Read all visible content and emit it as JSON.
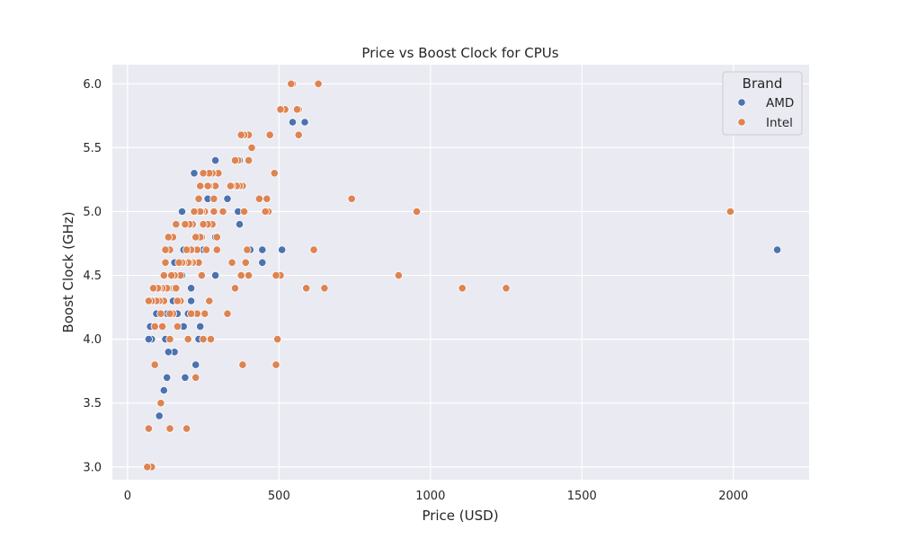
{
  "chart_data": {
    "type": "scatter",
    "title": "Price vs Boost Clock for CPUs",
    "xlabel": "Price (USD)",
    "ylabel": "Boost Clock (GHz)",
    "xlim": [
      -50,
      2250
    ],
    "ylim": [
      2.9,
      6.15
    ],
    "xticks": [
      0,
      500,
      1000,
      1500,
      2000
    ],
    "yticks": [
      3.0,
      3.5,
      4.0,
      4.5,
      5.0,
      5.5,
      6.0
    ],
    "xtick_labels": [
      "0",
      "500",
      "1000",
      "1500",
      "2000"
    ],
    "ytick_labels": [
      "3.0",
      "3.5",
      "4.0",
      "4.5",
      "5.0",
      "5.5",
      "6.0"
    ],
    "grid": true,
    "legend": {
      "title": "Brand",
      "position": "top-right"
    },
    "colors": {
      "background": "#eaeaf2",
      "grid": "#ffffff",
      "AMD": "#4c72b0",
      "Intel": "#dd8452"
    },
    "series": [
      {
        "name": "AMD",
        "color": "#4c72b0",
        "points": [
          [
            2145,
            4.7
          ],
          [
            585,
            5.7
          ],
          [
            545,
            5.7
          ],
          [
            510,
            4.7
          ],
          [
            445,
            4.6
          ],
          [
            445,
            4.7
          ],
          [
            405,
            4.7
          ],
          [
            385,
            5.6
          ],
          [
            370,
            5.4
          ],
          [
            365,
            5.0
          ],
          [
            370,
            4.9
          ],
          [
            330,
            5.1
          ],
          [
            290,
            5.4
          ],
          [
            290,
            4.8
          ],
          [
            290,
            4.5
          ],
          [
            265,
            5.1
          ],
          [
            250,
            4.7
          ],
          [
            230,
            5.0
          ],
          [
            225,
            4.7
          ],
          [
            220,
            5.3
          ],
          [
            220,
            4.2
          ],
          [
            240,
            4.1
          ],
          [
            235,
            4.0
          ],
          [
            225,
            3.8
          ],
          [
            210,
            4.4
          ],
          [
            210,
            4.3
          ],
          [
            200,
            4.2
          ],
          [
            180,
            5.0
          ],
          [
            185,
            4.7
          ],
          [
            180,
            4.5
          ],
          [
            185,
            4.1
          ],
          [
            190,
            3.7
          ],
          [
            165,
            4.3
          ],
          [
            165,
            4.2
          ],
          [
            155,
            4.6
          ],
          [
            150,
            4.4
          ],
          [
            150,
            4.3
          ],
          [
            155,
            3.9
          ],
          [
            140,
            4.4
          ],
          [
            135,
            3.9
          ],
          [
            130,
            4.2
          ],
          [
            125,
            4.0
          ],
          [
            130,
            3.7
          ],
          [
            120,
            3.6
          ],
          [
            110,
            4.3
          ],
          [
            105,
            3.4
          ],
          [
            100,
            4.2
          ],
          [
            95,
            4.2
          ],
          [
            90,
            4.3
          ],
          [
            85,
            4.1
          ],
          [
            80,
            4.0
          ],
          [
            75,
            4.1
          ],
          [
            70,
            4.0
          ]
        ]
      },
      {
        "name": "Intel",
        "color": "#dd8452",
        "points": [
          [
            1990,
            5.0
          ],
          [
            1250,
            4.4
          ],
          [
            1105,
            4.4
          ],
          [
            955,
            5.0
          ],
          [
            895,
            4.5
          ],
          [
            740,
            5.1
          ],
          [
            650,
            4.4
          ],
          [
            630,
            6.0
          ],
          [
            615,
            4.7
          ],
          [
            590,
            4.4
          ],
          [
            565,
            5.8
          ],
          [
            560,
            5.8
          ],
          [
            565,
            5.6
          ],
          [
            545,
            6.0
          ],
          [
            540,
            6.0
          ],
          [
            520,
            5.8
          ],
          [
            505,
            5.8
          ],
          [
            505,
            4.5
          ],
          [
            495,
            4.0
          ],
          [
            490,
            4.5
          ],
          [
            490,
            3.8
          ],
          [
            485,
            5.3
          ],
          [
            470,
            5.6
          ],
          [
            465,
            5.0
          ],
          [
            460,
            5.1
          ],
          [
            455,
            5.0
          ],
          [
            435,
            5.1
          ],
          [
            410,
            5.5
          ],
          [
            400,
            5.6
          ],
          [
            400,
            5.4
          ],
          [
            395,
            4.7
          ],
          [
            400,
            4.5
          ],
          [
            390,
            4.6
          ],
          [
            385,
            5.0
          ],
          [
            385,
            5.6
          ],
          [
            380,
            5.2
          ],
          [
            375,
            5.6
          ],
          [
            375,
            4.5
          ],
          [
            380,
            3.8
          ],
          [
            370,
            5.2
          ],
          [
            365,
            5.4
          ],
          [
            360,
            5.2
          ],
          [
            355,
            4.4
          ],
          [
            355,
            5.4
          ],
          [
            345,
            5.2
          ],
          [
            345,
            4.6
          ],
          [
            340,
            5.2
          ],
          [
            330,
            4.2
          ],
          [
            315,
            5.0
          ],
          [
            300,
            5.3
          ],
          [
            295,
            4.8
          ],
          [
            295,
            4.7
          ],
          [
            290,
            5.2
          ],
          [
            285,
            5.0
          ],
          [
            285,
            5.1
          ],
          [
            280,
            5.3
          ],
          [
            280,
            4.9
          ],
          [
            275,
            4.0
          ],
          [
            270,
            4.3
          ],
          [
            270,
            5.3
          ],
          [
            270,
            5.2
          ],
          [
            265,
            5.2
          ],
          [
            265,
            4.9
          ],
          [
            260,
            4.7
          ],
          [
            255,
            5.0
          ],
          [
            250,
            4.9
          ],
          [
            255,
            4.2
          ],
          [
            250,
            4.0
          ],
          [
            250,
            5.3
          ],
          [
            245,
            4.5
          ],
          [
            245,
            5.0
          ],
          [
            245,
            4.8
          ],
          [
            240,
            5.0
          ],
          [
            240,
            4.8
          ],
          [
            240,
            5.2
          ],
          [
            235,
            5.1
          ],
          [
            235,
            4.6
          ],
          [
            230,
            4.7
          ],
          [
            230,
            4.2
          ],
          [
            225,
            3.7
          ],
          [
            225,
            4.8
          ],
          [
            220,
            5.0
          ],
          [
            215,
            4.9
          ],
          [
            215,
            4.6
          ],
          [
            210,
            4.7
          ],
          [
            210,
            4.2
          ],
          [
            205,
            4.6
          ],
          [
            205,
            4.9
          ],
          [
            200,
            4.0
          ],
          [
            200,
            4.6
          ],
          [
            195,
            4.7
          ],
          [
            195,
            3.3
          ],
          [
            190,
            4.9
          ],
          [
            185,
            4.6
          ],
          [
            180,
            4.6
          ],
          [
            175,
            4.3
          ],
          [
            175,
            4.5
          ],
          [
            170,
            4.6
          ],
          [
            165,
            4.1
          ],
          [
            165,
            4.3
          ],
          [
            160,
            4.4
          ],
          [
            160,
            4.9
          ],
          [
            155,
            4.5
          ],
          [
            150,
            4.8
          ],
          [
            150,
            4.2
          ],
          [
            145,
            4.5
          ],
          [
            140,
            4.7
          ],
          [
            140,
            4.2
          ],
          [
            140,
            4.0
          ],
          [
            140,
            3.3
          ],
          [
            135,
            4.4
          ],
          [
            135,
            4.8
          ],
          [
            130,
            4.4
          ],
          [
            125,
            4.7
          ],
          [
            125,
            4.6
          ],
          [
            120,
            4.5
          ],
          [
            120,
            4.3
          ],
          [
            115,
            4.4
          ],
          [
            115,
            4.1
          ],
          [
            110,
            4.2
          ],
          [
            110,
            3.5
          ],
          [
            105,
            4.4
          ],
          [
            105,
            4.3
          ],
          [
            100,
            4.4
          ],
          [
            95,
            4.3
          ],
          [
            90,
            4.1
          ],
          [
            90,
            3.8
          ],
          [
            85,
            4.4
          ],
          [
            80,
            4.3
          ],
          [
            80,
            3.0
          ],
          [
            70,
            4.3
          ],
          [
            70,
            3.3
          ],
          [
            65,
            3.0
          ]
        ]
      }
    ]
  }
}
